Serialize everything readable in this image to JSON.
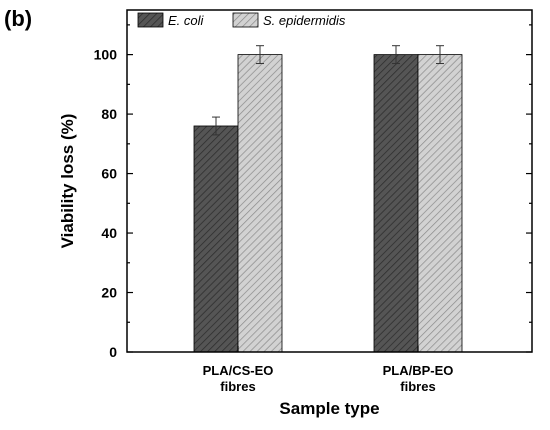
{
  "panel_label": "(b)",
  "chart_data": {
    "type": "bar",
    "categories": [
      [
        "PLA/CS-EO",
        "fibres"
      ],
      [
        "PLA/BP-EO",
        "fibres"
      ]
    ],
    "series": [
      {
        "name": "E. coli",
        "values": [
          76,
          100
        ],
        "errors": [
          3,
          3
        ],
        "color": "#555555",
        "pattern": "dense-diagonal"
      },
      {
        "name": "S. epidermidis",
        "values": [
          100,
          100
        ],
        "errors": [
          3,
          3
        ],
        "color": "#c8c8c8",
        "pattern": "dense-diagonal"
      }
    ],
    "xlabel": "Sample type",
    "ylabel": "Viability loss (%)",
    "ylim": [
      0,
      115
    ],
    "yticks": [
      0,
      20,
      40,
      60,
      80,
      100
    ],
    "legend_position": "top-left",
    "grid": false
  }
}
